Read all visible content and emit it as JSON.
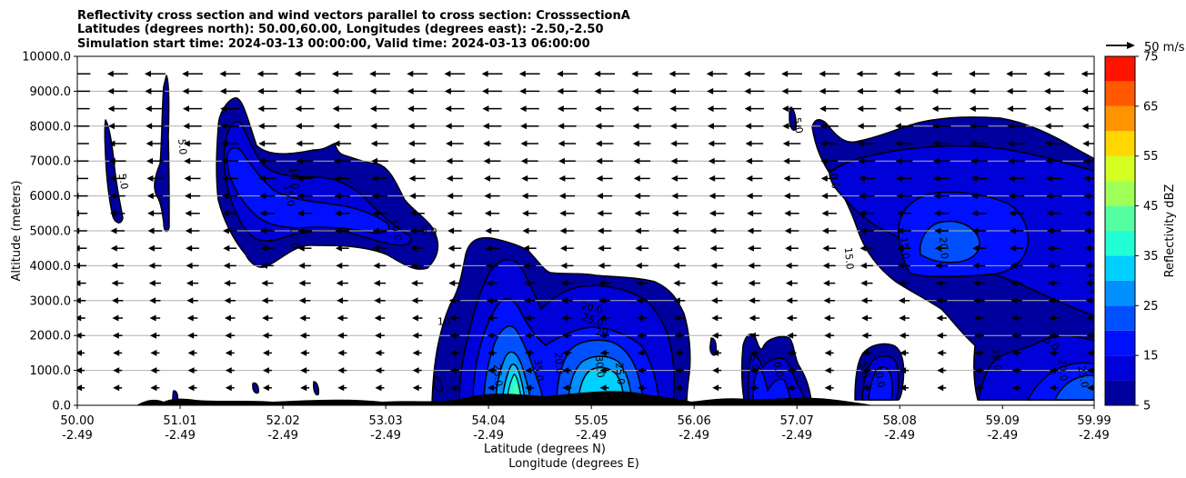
{
  "chart_data": {
    "type": "contour",
    "title_lines": [
      "Reflectivity cross section and wind vectors parallel to cross section: CrosssectionA",
      "Latitudes (degrees north): 50.00,60.00, Longitudes (degrees east): -2.50,-2.50",
      "Simulation start time: 2024-03-13 00:00:00, Valid time: 2024-03-13 06:00:00"
    ],
    "xlabel_line1": "Latitude (degrees N)",
    "xlabel_line2": "Longitude (degrees E)",
    "ylabel": "Altitude (meters)",
    "ylim": [
      0,
      10000
    ],
    "xlim": [
      50.0,
      59.99
    ],
    "yticks": [
      {
        "value": 0,
        "label": "0.0"
      },
      {
        "value": 1000,
        "label": "1000.0"
      },
      {
        "value": 2000,
        "label": "2000.0"
      },
      {
        "value": 3000,
        "label": "3000.0"
      },
      {
        "value": 4000,
        "label": "4000.0"
      },
      {
        "value": 5000,
        "label": "5000.0"
      },
      {
        "value": 6000,
        "label": "6000.0"
      },
      {
        "value": 7000,
        "label": "7000.0"
      },
      {
        "value": 8000,
        "label": "8000.0"
      },
      {
        "value": 9000,
        "label": "9000.0"
      },
      {
        "value": 10000,
        "label": "10000.0"
      }
    ],
    "xticks": [
      {
        "value": 50.0,
        "lat": "50.00",
        "lon": "-2.49"
      },
      {
        "value": 51.01,
        "lat": "51.01",
        "lon": "-2.49"
      },
      {
        "value": 52.02,
        "lat": "52.02",
        "lon": "-2.49"
      },
      {
        "value": 53.03,
        "lat": "53.03",
        "lon": "-2.49"
      },
      {
        "value": 54.04,
        "lat": "54.04",
        "lon": "-2.49"
      },
      {
        "value": 55.05,
        "lat": "55.05",
        "lon": "-2.49"
      },
      {
        "value": 56.06,
        "lat": "56.06",
        "lon": "-2.49"
      },
      {
        "value": 57.07,
        "lat": "57.07",
        "lon": "-2.49"
      },
      {
        "value": 58.08,
        "lat": "58.08",
        "lon": "-2.49"
      },
      {
        "value": 59.09,
        "lat": "59.09",
        "lon": "-2.49"
      },
      {
        "value": 59.99,
        "lat": "59.99",
        "lon": "-2.49"
      }
    ],
    "grid": "horizontal",
    "colorbar": {
      "label": "Reflectivity dBZ",
      "levels": [
        5,
        10,
        15,
        20,
        25,
        30,
        35,
        40,
        45,
        50,
        55,
        60,
        65,
        70,
        75
      ],
      "tick_labels": [
        "5",
        "15",
        "25",
        "35",
        "45",
        "55",
        "65",
        "75"
      ],
      "colors": [
        "#00009f",
        "#0000d8",
        "#0010ff",
        "#0050ff",
        "#0090ff",
        "#00d0ff",
        "#22ffd4",
        "#55ffa1",
        "#9fff57",
        "#d4ff22",
        "#ffd600",
        "#ff9400",
        "#ff5900",
        "#ff1400",
        "#a40000"
      ]
    },
    "quiver_key": "50 m/s",
    "contour_labels": [
      {
        "text": "5.0",
        "lat": 50.42,
        "alt": 6400,
        "rot": 80
      },
      {
        "text": "5.0",
        "lat": 51.0,
        "alt": 7400,
        "rot": 85
      },
      {
        "text": "10.0",
        "lat": 52.1,
        "alt": 6500,
        "rot": 85
      },
      {
        "text": "15.0",
        "lat": 52.05,
        "alt": 6000,
        "rot": 80
      },
      {
        "text": "10.0",
        "lat": 52.1,
        "alt": 4800,
        "rot": 85
      },
      {
        "text": "10.0",
        "lat": 53.1,
        "alt": 5000,
        "rot": 75
      },
      {
        "text": "5.0",
        "lat": 53.45,
        "alt": 4900,
        "rot": 10
      },
      {
        "text": "10",
        "lat": 53.6,
        "alt": 2300,
        "rot": 0
      },
      {
        "text": "20.0",
        "lat": 55.05,
        "alt": 2700,
        "rot": 10
      },
      {
        "text": "25.0",
        "lat": 55.05,
        "alt": 2350,
        "rot": 20
      },
      {
        "text": "20",
        "lat": 55.15,
        "alt": 2000,
        "rot": 5
      },
      {
        "text": "25.0",
        "lat": 54.1,
        "alt": 850,
        "rot": 85
      },
      {
        "text": "35.0",
        "lat": 54.5,
        "alt": 1000,
        "rot": 85
      },
      {
        "text": "20.0",
        "lat": 54.7,
        "alt": 1200,
        "rot": 85
      },
      {
        "text": "30.0",
        "lat": 55.1,
        "alt": 1100,
        "rot": 85
      },
      {
        "text": "25.0",
        "lat": 55.3,
        "alt": 900,
        "rot": 85
      },
      {
        "text": "5.0",
        "lat": 56.62,
        "alt": 1200,
        "rot": 80
      },
      {
        "text": "10.0",
        "lat": 56.85,
        "alt": 1100,
        "rot": 80
      },
      {
        "text": "5.0",
        "lat": 57.05,
        "alt": 8000,
        "rot": 80
      },
      {
        "text": "10.0",
        "lat": 57.4,
        "alt": 6500,
        "rot": 80
      },
      {
        "text": "15.0",
        "lat": 57.55,
        "alt": 4200,
        "rot": 85
      },
      {
        "text": "15.0",
        "lat": 58.1,
        "alt": 4500,
        "rot": 85
      },
      {
        "text": "20.0",
        "lat": 58.48,
        "alt": 4500,
        "rot": 85
      },
      {
        "text": "5.0",
        "lat": 57.7,
        "alt": 1000,
        "rot": 80
      },
      {
        "text": "10.0",
        "lat": 57.85,
        "alt": 800,
        "rot": 80
      },
      {
        "text": "10.0",
        "lat": 59.0,
        "alt": 1300,
        "rot": 85
      },
      {
        "text": "20.0",
        "lat": 59.65,
        "alt": 1000,
        "rot": 85
      },
      {
        "text": "25.0",
        "lat": 59.85,
        "alt": 800,
        "rot": 80
      },
      {
        "text": "10.0",
        "lat": 59.95,
        "alt": 3500,
        "rot": 85
      },
      {
        "text": "5.0",
        "lat": 59.55,
        "alt": 1700,
        "rot": 40
      }
    ]
  }
}
